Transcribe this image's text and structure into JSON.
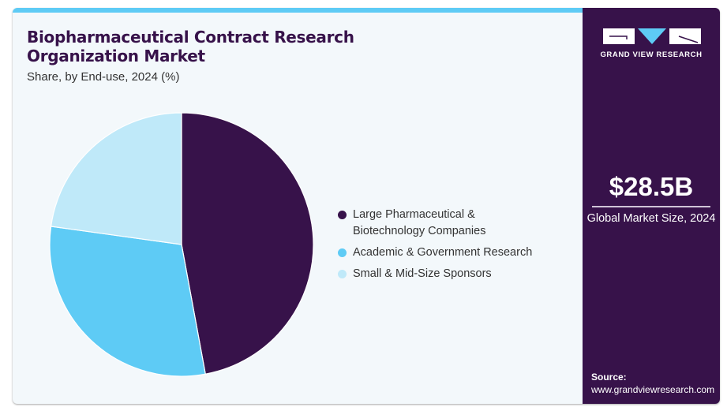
{
  "header": {
    "title": "Biopharmaceutical Contract Research Organization Market",
    "subtitle": "Share, by End-use, 2024 (%)"
  },
  "brand": {
    "name": "GRAND VIEW RESEARCH",
    "logo_icon": "gvr-logo-icon"
  },
  "stats": {
    "value": "$28.5B",
    "caption": "Global Market Size, 2024"
  },
  "source": {
    "label": "Source:",
    "url": "www.grandviewresearch.com"
  },
  "colors": {
    "accent_bar": "#5ecbf5",
    "panel": "#37124a"
  },
  "chart_data": {
    "type": "pie",
    "title": "Biopharmaceutical Contract Research Organization Market",
    "subtitle": "Share, by End-use, 2024 (%)",
    "legend_position": "right",
    "categories": [
      "Large Pharmaceutical & Biotechnology Companies",
      "Academic & Government Research",
      "Small & Mid-Size Sponsors"
    ],
    "values": [
      47.1,
      30.1,
      22.8
    ],
    "colors": [
      "#37124a",
      "#5ecbf5",
      "#bfe9f9"
    ],
    "start_angle": "12 o'clock",
    "direction": "clockwise"
  }
}
